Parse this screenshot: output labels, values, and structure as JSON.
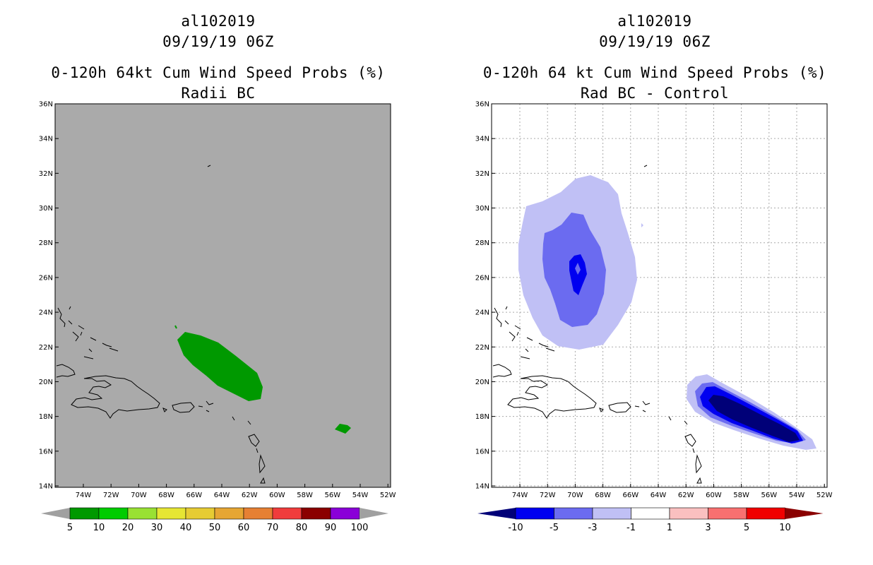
{
  "left_panel": {
    "storm_id": "al102019",
    "datetime": "09/19/19 06Z",
    "title": "0-120h 64kt Cum Wind Speed Probs (%)",
    "subtitle": "Radii BC",
    "background_color": "#aaaaaa",
    "contour_color": "#009900",
    "colorbar": {
      "labels": [
        "5",
        "10",
        "20",
        "30",
        "40",
        "50",
        "60",
        "70",
        "80",
        "90",
        "100"
      ],
      "colors": [
        "#a0a0a0",
        "#009900",
        "#00cc00",
        "#99e133",
        "#e6e633",
        "#e6cc33",
        "#e6a633",
        "#e68033",
        "#f03c3c",
        "#8b0000",
        "#8a00d8",
        "#a0a0a0"
      ]
    }
  },
  "right_panel": {
    "storm_id": "al102019",
    "datetime": "09/19/19 06Z",
    "title": "0-120h 64 kt Cum Wind Speed Probs (%)",
    "subtitle": "Rad BC - Control",
    "colorbar": {
      "labels": [
        "-10",
        "-5",
        "-3",
        "-1",
        "1",
        "3",
        "5",
        "10"
      ],
      "colors": [
        "#000078",
        "#0000f0",
        "#6b6bf0",
        "#c0c0f5",
        "#ffffff",
        "#fac0c0",
        "#f87070",
        "#f00000",
        "#8a0000"
      ]
    }
  },
  "axes": {
    "lat_labels": [
      "36N",
      "34N",
      "32N",
      "30N",
      "28N",
      "26N",
      "24N",
      "22N",
      "20N",
      "18N",
      "16N",
      "14N"
    ],
    "lon_labels": [
      "74W",
      "72W",
      "70W",
      "68W",
      "66W",
      "64W",
      "62W",
      "60W",
      "58W",
      "56W",
      "54W",
      "52W"
    ]
  }
}
